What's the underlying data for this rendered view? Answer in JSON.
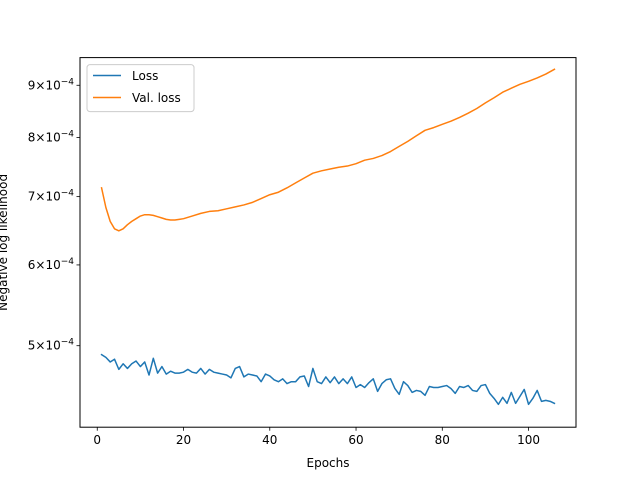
{
  "chart_data": {
    "type": "line",
    "title": "",
    "xlabel": "Epochs",
    "ylabel": "Negative log likelihood",
    "yscale": "log",
    "xlim": [
      -4,
      111
    ],
    "ylim": [
      0.000416,
      0.000958
    ],
    "x_ticks": [
      {
        "value": 0,
        "label": "0"
      },
      {
        "value": 20,
        "label": "20"
      },
      {
        "value": 40,
        "label": "40"
      },
      {
        "value": 60,
        "label": "60"
      },
      {
        "value": 80,
        "label": "80"
      },
      {
        "value": 100,
        "label": "100"
      }
    ],
    "y_ticks": [
      {
        "value": 0.0005,
        "mant": "5",
        "exp": "−4"
      },
      {
        "value": 0.0006,
        "mant": "6",
        "exp": "−4"
      },
      {
        "value": 0.0007,
        "mant": "7",
        "exp": "−4"
      },
      {
        "value": 0.0008,
        "mant": "8",
        "exp": "−4"
      },
      {
        "value": 0.0009,
        "mant": "9",
        "exp": "−4"
      }
    ],
    "grid": false,
    "legend": {
      "position": "top-left"
    },
    "series": [
      {
        "name": "Loss",
        "color": "#1f77b4",
        "x": [
          1,
          2,
          3,
          4,
          5,
          6,
          7,
          8,
          9,
          10,
          11,
          12,
          13,
          14,
          15,
          16,
          17,
          18,
          19,
          20,
          21,
          22,
          23,
          24,
          25,
          26,
          27,
          28,
          29,
          30,
          31,
          32,
          33,
          34,
          35,
          36,
          37,
          38,
          39,
          40,
          41,
          42,
          43,
          44,
          45,
          46,
          47,
          48,
          49,
          50,
          51,
          52,
          53,
          54,
          55,
          56,
          57,
          58,
          59,
          60,
          61,
          62,
          63,
          64,
          65,
          66,
          67,
          68,
          69,
          70,
          71,
          72,
          73,
          74,
          75,
          76,
          77,
          78,
          79,
          80,
          81,
          82,
          83,
          84,
          85,
          86,
          87,
          88,
          89,
          90,
          91,
          92,
          93,
          94,
          95,
          96,
          97,
          98,
          99,
          100,
          101,
          102,
          103,
          104,
          105,
          106
        ],
        "values": [
          0.00049,
          0.000487,
          0.000482,
          0.000485,
          0.000474,
          0.00048,
          0.000475,
          0.00048,
          0.000483,
          0.000477,
          0.000482,
          0.000468,
          0.000486,
          0.00047,
          0.000477,
          0.000469,
          0.000472,
          0.00047,
          0.00047,
          0.000471,
          0.000474,
          0.000471,
          0.00047,
          0.000475,
          0.000469,
          0.000474,
          0.000471,
          0.00047,
          0.000469,
          0.000468,
          0.000465,
          0.000475,
          0.000477,
          0.000466,
          0.000469,
          0.000468,
          0.000467,
          0.000461,
          0.000469,
          0.000467,
          0.000463,
          0.000461,
          0.000464,
          0.000459,
          0.000461,
          0.000461,
          0.000466,
          0.000467,
          0.000456,
          0.000475,
          0.000461,
          0.000459,
          0.000466,
          0.00046,
          0.000466,
          0.000459,
          0.000464,
          0.000459,
          0.000466,
          0.000455,
          0.000458,
          0.000455,
          0.00046,
          0.000464,
          0.000451,
          0.000459,
          0.000463,
          0.000464,
          0.000454,
          0.000448,
          0.000461,
          0.000457,
          0.00045,
          0.000452,
          0.000451,
          0.000447,
          0.000456,
          0.000455,
          0.000455,
          0.000456,
          0.000457,
          0.000454,
          0.000449,
          0.000456,
          0.000455,
          0.000457,
          0.000452,
          0.000451,
          0.000457,
          0.000458,
          0.000449,
          0.000444,
          0.000438,
          0.000445,
          0.000439,
          0.00045,
          0.000439,
          0.000446,
          0.000453,
          0.000438,
          0.000444,
          0.000452,
          0.000441,
          0.000442,
          0.000441,
          0.000439
        ]
      },
      {
        "name": "Val. loss",
        "color": "#ff7f0e",
        "x": [
          1,
          2,
          3,
          4,
          5,
          6,
          7,
          8,
          9,
          10,
          11,
          12,
          13,
          14,
          15,
          16,
          17,
          18,
          19,
          20,
          22,
          24,
          26,
          28,
          30,
          32,
          34,
          36,
          38,
          40,
          42,
          44,
          46,
          48,
          50,
          52,
          54,
          56,
          58,
          60,
          62,
          64,
          66,
          68,
          70,
          72,
          74,
          76,
          78,
          80,
          82,
          84,
          86,
          88,
          90,
          92,
          94,
          96,
          98,
          100,
          102,
          104,
          106
        ],
        "values": [
          0.000714,
          0.000683,
          0.000662,
          0.000651,
          0.000648,
          0.000651,
          0.000657,
          0.000662,
          0.000666,
          0.00067,
          0.000672,
          0.000672,
          0.000671,
          0.000669,
          0.000667,
          0.000665,
          0.000664,
          0.000664,
          0.000665,
          0.000666,
          0.00067,
          0.000674,
          0.000677,
          0.000678,
          0.000681,
          0.000684,
          0.000687,
          0.000691,
          0.000697,
          0.000703,
          0.000707,
          0.000714,
          0.000722,
          0.00073,
          0.000738,
          0.000742,
          0.000745,
          0.000748,
          0.00075,
          0.000754,
          0.00076,
          0.000763,
          0.000768,
          0.000775,
          0.000784,
          0.000793,
          0.000803,
          0.000813,
          0.000818,
          0.000824,
          0.00083,
          0.000837,
          0.000845,
          0.000854,
          0.000865,
          0.000875,
          0.000886,
          0.000894,
          0.000902,
          0.000908,
          0.000915,
          0.000923,
          0.000933
        ]
      }
    ]
  }
}
